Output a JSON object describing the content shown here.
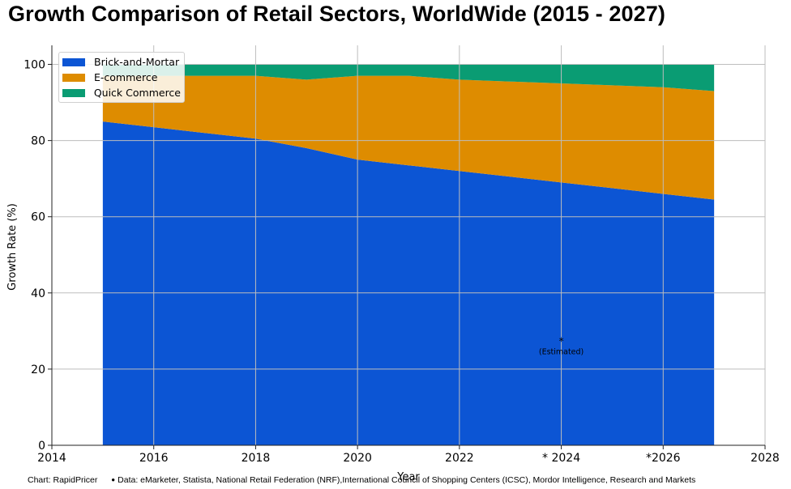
{
  "chart_title": "Growth Comparison of Retail Sectors, WorldWide (2015 - 2027)",
  "chart_data": {
    "type": "area",
    "stacked": true,
    "title": "Growth Comparison of Retail Sectors, WorldWide (2015 - 2027)",
    "xlabel": "Year",
    "ylabel": "Growth Rate (%)",
    "xlim": [
      2014,
      2028
    ],
    "ylim": [
      0,
      105
    ],
    "x_ticks": [
      2014,
      2016,
      2018,
      2020,
      2022,
      2024,
      2026,
      2028
    ],
    "x_tick_labels": [
      "2014",
      "2016",
      "2018",
      "2020",
      "2022",
      "* 2024",
      "*2026",
      "2028"
    ],
    "y_ticks": [
      0,
      20,
      40,
      60,
      80,
      100
    ],
    "y_tick_labels": [
      "0",
      "20",
      "40",
      "60",
      "80",
      "100"
    ],
    "grid": true,
    "legend_position": "top-left",
    "x": [
      2015,
      2016,
      2017,
      2018,
      2019,
      2020,
      2021,
      2022,
      2023,
      2024,
      2025,
      2026,
      2027
    ],
    "series": [
      {
        "name": "Brick-and-Mortar",
        "color": "#0c55d4",
        "values": [
          85,
          83.5,
          82,
          80.5,
          78,
          75,
          73.5,
          72,
          70.5,
          69,
          67.5,
          66,
          64.5
        ]
      },
      {
        "name": "E-commerce",
        "color": "#de8c00",
        "values": [
          12,
          13.5,
          15,
          16.5,
          18,
          22,
          23.5,
          24,
          25,
          26,
          27,
          28,
          28.5
        ]
      },
      {
        "name": "Quick Commerce",
        "color": "#0a9c73",
        "values": [
          3,
          3,
          3,
          3,
          4,
          3,
          3,
          4,
          4.5,
          5,
          5.5,
          6,
          7
        ]
      }
    ],
    "annotation": {
      "symbol": "*",
      "text": "(Estimated)",
      "x": 2024,
      "y": 28
    }
  },
  "footer": {
    "credit": "Chart: RapidPricer",
    "source": "Data: eMarketer, Statista, National Retail Federation (NRF),International Council of Shopping Centers (ICSC), Mordor Intelligence, Research and Markets"
  }
}
